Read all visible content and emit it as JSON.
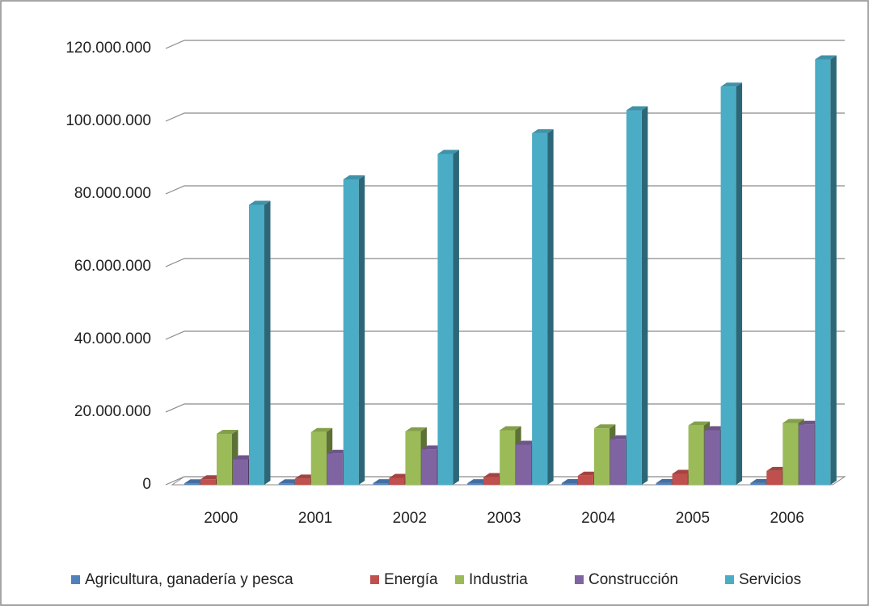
{
  "chart_data": {
    "type": "bar3d",
    "categories": [
      "2000",
      "2001",
      "2002",
      "2003",
      "2004",
      "2005",
      "2006"
    ],
    "series": [
      {
        "name": "Agricultura, ganadería y pesca",
        "color": "#4f81bd",
        "values": [
          400000,
          400000,
          420000,
          430000,
          450000,
          460000,
          480000
        ]
      },
      {
        "name": "Energía",
        "color": "#c0504d",
        "values": [
          1500000,
          1700000,
          1900000,
          2100000,
          2500000,
          3000000,
          3800000
        ]
      },
      {
        "name": "Industria",
        "color": "#9bbb59",
        "values": [
          14000000,
          14500000,
          14700000,
          15000000,
          15500000,
          16300000,
          17000000
        ]
      },
      {
        "name": "Construcción",
        "color": "#8064a2",
        "values": [
          7000000,
          8500000,
          9700000,
          11000000,
          12500000,
          15000000,
          16500000
        ]
      },
      {
        "name": "Servicios",
        "color": "#4bacc6",
        "values": [
          77000000,
          84000000,
          91000000,
          96700000,
          103000000,
          109500000,
          117000000
        ]
      }
    ],
    "ylim": [
      0,
      120000000
    ],
    "yticks": [
      0,
      {
        "value": 20000000,
        "label": "20.000.000"
      },
      {
        "value": 40000000,
        "label": "40.000.000"
      },
      {
        "value": 60000000,
        "label": "60.000.000"
      },
      {
        "value": 80000000,
        "label": "80.000.000"
      },
      {
        "value": 100000000,
        "label": "100.000.000"
      },
      {
        "value": 120000000,
        "label": "120.000.000"
      }
    ],
    "grid": true,
    "legend": "bottom"
  }
}
